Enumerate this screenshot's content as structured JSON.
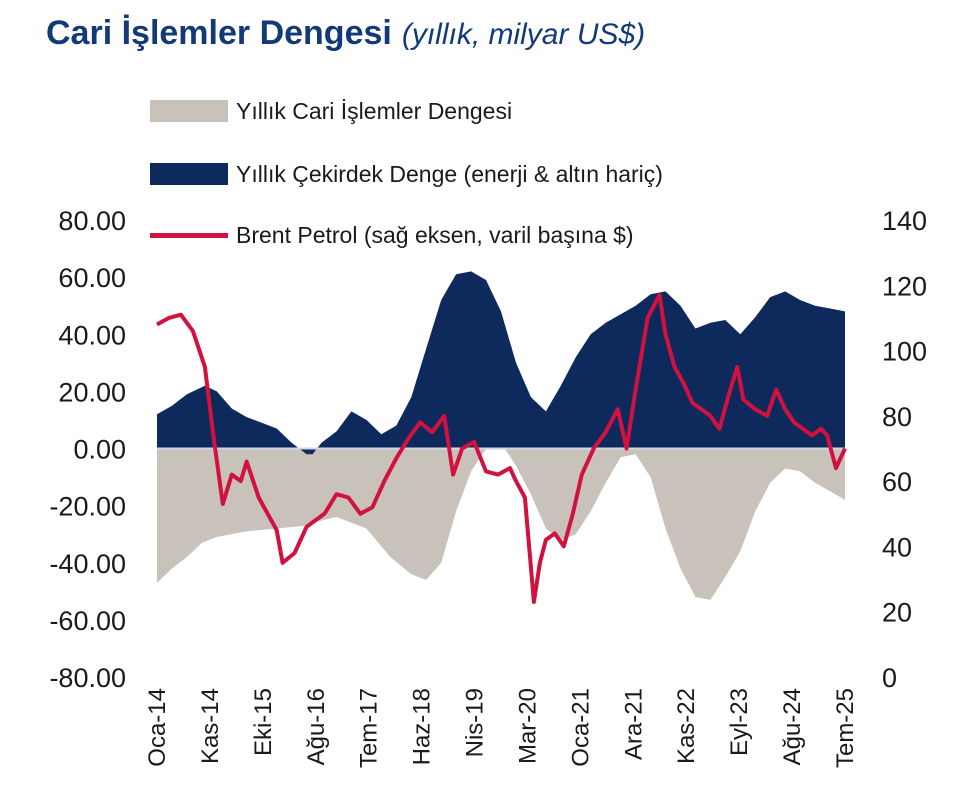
{
  "title": "Cari İşlemler Dengesi",
  "subtitle": "(yıllık, milyar US$)",
  "chart_data": {
    "type": "area",
    "ylim": [
      -80,
      80
    ],
    "y2lim": [
      0,
      140
    ],
    "yticks": [
      "80.00",
      "60.00",
      "40.00",
      "20.00",
      "0.00",
      "-20.00",
      "-40.00",
      "-60.00",
      "-80.00"
    ],
    "y2ticks": [
      "140",
      "120",
      "100",
      "80",
      "60",
      "40",
      "20",
      "0"
    ],
    "xticks": [
      "Oca-14",
      "Kas-14",
      "Eki-15",
      "Ağu-16",
      "Tem-17",
      "Haz-18",
      "Nis-19",
      "Mar-20",
      "Oca-21",
      "Ara-21",
      "Kas-22",
      "Eyl-23",
      "Ağu-24",
      "Tem-25"
    ],
    "legend_placement": "top-left",
    "colors": {
      "headline": "#c8c2bb",
      "core": "#0e2a5c",
      "brent": "#d1123f"
    },
    "series": [
      {
        "name": "Yıllık Cari İşlemler Dengesi",
        "type": "area",
        "axis": "left",
        "x": [
          2014.0,
          2014.25,
          2014.5,
          2014.75,
          2015.0,
          2015.5,
          2016.0,
          2016.5,
          2016.6,
          2017.0,
          2017.5,
          2017.9,
          2018.25,
          2018.5,
          2018.75,
          2019.0,
          2019.25,
          2019.5,
          2019.75,
          2020.0,
          2020.25,
          2020.5,
          2020.75,
          2021.0,
          2021.25,
          2021.5,
          2021.75,
          2022.0,
          2022.25,
          2022.5,
          2022.75,
          2023.0,
          2023.25,
          2023.5,
          2023.75,
          2024.0,
          2024.25,
          2024.5,
          2024.75,
          2025.0,
          2025.25,
          2025.5
        ],
        "values": [
          -47,
          -42,
          -38,
          -33,
          -31,
          -29,
          -28,
          -27,
          -26,
          -24,
          -28,
          -38,
          -44,
          -46,
          -40,
          -22,
          -8,
          0,
          2,
          -6,
          -16,
          -28,
          -32,
          -30,
          -22,
          -12,
          -3,
          -2,
          -10,
          -28,
          -42,
          -52,
          -53,
          -45,
          -36,
          -22,
          -12,
          -7,
          -8,
          -12,
          -15,
          -18
        ]
      },
      {
        "name": "Yıllık Çekirdek Denge (enerji & altın hariç)",
        "type": "area",
        "axis": "left",
        "x": [
          2014.0,
          2014.25,
          2014.5,
          2014.8,
          2015.0,
          2015.25,
          2015.5,
          2015.75,
          2016.0,
          2016.25,
          2016.5,
          2016.6,
          2016.75,
          2017.0,
          2017.25,
          2017.5,
          2017.75,
          2018.0,
          2018.25,
          2018.5,
          2018.75,
          2019.0,
          2019.25,
          2019.5,
          2019.75,
          2020.0,
          2020.25,
          2020.5,
          2020.75,
          2021.0,
          2021.25,
          2021.5,
          2021.75,
          2022.0,
          2022.25,
          2022.5,
          2022.75,
          2023.0,
          2023.25,
          2023.5,
          2023.75,
          2024.0,
          2024.25,
          2024.5,
          2024.75,
          2025.0,
          2025.25,
          2025.5
        ],
        "values": [
          12,
          15,
          19,
          22,
          20,
          14,
          11,
          9,
          7,
          2,
          -2,
          -2,
          2,
          6,
          13,
          10,
          5,
          8,
          18,
          35,
          52,
          61,
          62,
          59,
          48,
          30,
          18,
          13,
          22,
          32,
          40,
          44,
          47,
          50,
          54,
          55,
          50,
          42,
          44,
          45,
          40,
          46,
          53,
          55,
          52,
          50,
          49,
          48
        ]
      },
      {
        "name": "Brent Petrol (sağ eksen, varil başına $)",
        "type": "line",
        "axis": "right",
        "x": [
          2014.0,
          2014.2,
          2014.4,
          2014.6,
          2014.8,
          2014.95,
          2015.1,
          2015.25,
          2015.4,
          2015.5,
          2015.7,
          2015.85,
          2016.0,
          2016.1,
          2016.3,
          2016.5,
          2016.65,
          2016.8,
          2017.0,
          2017.2,
          2017.4,
          2017.6,
          2017.8,
          2018.0,
          2018.2,
          2018.4,
          2018.6,
          2018.8,
          2018.95,
          2019.1,
          2019.3,
          2019.5,
          2019.7,
          2019.9,
          2020.0,
          2020.15,
          2020.3,
          2020.4,
          2020.5,
          2020.65,
          2020.8,
          2020.95,
          2021.1,
          2021.3,
          2021.5,
          2021.7,
          2021.85,
          2022.0,
          2022.2,
          2022.4,
          2022.5,
          2022.65,
          2022.8,
          2022.95,
          2023.1,
          2023.25,
          2023.4,
          2023.55,
          2023.7,
          2023.8,
          2024.0,
          2024.2,
          2024.35,
          2024.5,
          2024.65,
          2024.8,
          2024.95,
          2025.1,
          2025.2,
          2025.35,
          2025.5
        ],
        "values": [
          108,
          110,
          111,
          106,
          95,
          73,
          53,
          62,
          60,
          66,
          55,
          50,
          45,
          35,
          38,
          46,
          48,
          50,
          56,
          55,
          50,
          52,
          60,
          67,
          73,
          78,
          75,
          80,
          62,
          70,
          72,
          63,
          62,
          64,
          60,
          55,
          23,
          35,
          42,
          44,
          40,
          50,
          62,
          70,
          75,
          82,
          70,
          88,
          110,
          117,
          105,
          95,
          90,
          84,
          82,
          80,
          76,
          86,
          95,
          85,
          82,
          80,
          88,
          82,
          78,
          76,
          74,
          76,
          74,
          64,
          70
        ]
      }
    ]
  }
}
